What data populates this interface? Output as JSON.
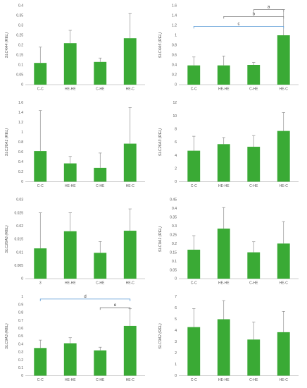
{
  "figure": {
    "bar_color": "#3aaa35",
    "bracket_color_blue": "#5b9bd5",
    "bracket_color_gray": "#808080"
  },
  "chart_data": [
    {
      "type": "bar",
      "ylabel": "SLC4A4 (REL)",
      "categories": [
        "C-C",
        "HE-HE",
        "C-HE",
        "HE-C"
      ],
      "values": [
        0.11,
        0.21,
        0.115,
        0.235
      ],
      "errors": [
        0.08,
        0.065,
        0.02,
        0.125
      ],
      "ylim": [
        0,
        0.4
      ],
      "yticks": [
        "0",
        "0.05",
        "0.1",
        "0.15",
        "0.2",
        "0.25",
        "0.3",
        "0.35",
        "0.4"
      ],
      "grid": false,
      "brackets": []
    },
    {
      "type": "bar",
      "ylabel": "SLC4A5 (REL)",
      "categories": [
        "C-C",
        "HE-HE",
        "C-HE",
        "HE-C"
      ],
      "values": [
        0.39,
        0.39,
        0.4,
        1.0
      ],
      "errors": [
        0.17,
        0.19,
        0.05,
        0.52
      ],
      "ylim": [
        0,
        1.6
      ],
      "yticks": [
        "0",
        "0.2",
        "0.4",
        "0.6",
        "0.8",
        "1",
        "1.2",
        "1.4",
        "1.6"
      ],
      "grid": false,
      "brackets": [
        {
          "from": 2,
          "to": 3,
          "y": 1.52,
          "label": "a",
          "color": "gray"
        },
        {
          "from": 1,
          "to": 3,
          "y": 1.38,
          "label": "b",
          "color": "gray"
        },
        {
          "from": 0,
          "to": 3,
          "y": 1.18,
          "label": "c",
          "color": "blue"
        }
      ]
    },
    {
      "type": "bar",
      "ylabel": "SLC26A1 (REL)",
      "categories": [
        "C-C",
        "HE-HE",
        "C-HE",
        "HE-C"
      ],
      "values": [
        0.62,
        0.37,
        0.28,
        0.77
      ],
      "errors": [
        0.82,
        0.14,
        0.3,
        0.73
      ],
      "ylim": [
        0,
        1.6
      ],
      "yticks": [
        "0",
        "0.2",
        "0.4",
        "0.6",
        "0.8",
        "1",
        "1.2",
        "1.4",
        "1.6"
      ],
      "grid": false,
      "brackets": []
    },
    {
      "type": "bar",
      "ylabel": "SLC26A3 (REL)",
      "categories": [
        "C-C",
        "HE-HE",
        "C-HE",
        "HE-C"
      ],
      "values": [
        4.7,
        5.7,
        5.3,
        7.7
      ],
      "errors": [
        2.2,
        1.0,
        1.7,
        2.8
      ],
      "ylim": [
        0,
        12
      ],
      "yticks": [
        "0",
        "2",
        "4",
        "6",
        "8",
        "10",
        "12"
      ],
      "grid": false,
      "brackets": []
    },
    {
      "type": "bar",
      "ylabel": "SLC26A6 (REL)",
      "categories": [
        "3",
        "HE-HE",
        "C-HE",
        "HE-C"
      ],
      "values": [
        0.0115,
        0.018,
        0.0098,
        0.0182
      ],
      "errors": [
        0.0135,
        0.007,
        0.0043,
        0.0083
      ],
      "ylim": [
        0,
        0.03
      ],
      "yticks": [
        "0",
        "0.005",
        "0.01",
        "0.015",
        "0.02",
        "0.025",
        "0.03"
      ],
      "grid": false,
      "brackets": []
    },
    {
      "type": "bar",
      "ylabel": "SLC9A1 (REL)",
      "categories": [
        "C-C",
        "HE-HE",
        "C-HE",
        "HE-C"
      ],
      "values": [
        0.165,
        0.285,
        0.15,
        0.2
      ],
      "errors": [
        0.08,
        0.12,
        0.06,
        0.125
      ],
      "ylim": [
        0,
        0.45
      ],
      "yticks": [
        "0",
        "0.05",
        "0.1",
        "0.15",
        "0.2",
        "0.25",
        "0.3",
        "0.35",
        "0.4",
        "0.45"
      ],
      "grid": false,
      "brackets": []
    },
    {
      "type": "bar",
      "ylabel": "SLC9A3 (REL)",
      "categories": [
        "C-C",
        "HE-HE",
        "C-HE",
        "HE-C"
      ],
      "values": [
        0.35,
        0.41,
        0.32,
        0.63
      ],
      "errors": [
        0.1,
        0.07,
        0.04,
        0.22
      ],
      "ylim": [
        0,
        1
      ],
      "yticks": [
        "0",
        "0.1",
        "0.2",
        "0.3",
        "0.4",
        "0.5",
        "0.6",
        "0.7",
        "0.8",
        "0.9",
        "1"
      ],
      "grid": false,
      "brackets": [
        {
          "from": 0,
          "to": 3,
          "y": 0.97,
          "label": "d",
          "color": "blue"
        },
        {
          "from": 2,
          "to": 3,
          "y": 0.86,
          "label": "e",
          "color": "gray"
        }
      ]
    },
    {
      "type": "bar",
      "ylabel": "SLC9A2 (REL)",
      "categories": [
        "C-C",
        "HE-HE",
        "C-HE",
        "HE-C"
      ],
      "values": [
        4.3,
        5.0,
        3.2,
        3.85
      ],
      "errors": [
        1.65,
        1.65,
        1.55,
        1.85
      ],
      "ylim": [
        0,
        7
      ],
      "yticks": [
        "0",
        "1",
        "2",
        "3",
        "4",
        "5",
        "6",
        "7"
      ],
      "grid": false,
      "brackets": []
    }
  ]
}
